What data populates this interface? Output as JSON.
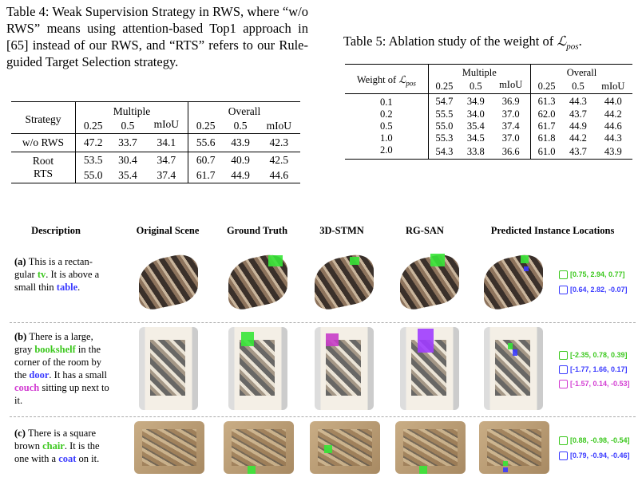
{
  "table4": {
    "caption": "Table 4: Weak Supervision Strategy in RWS, where “w/o RWS” means using attention-based Top1 approach in [65] instead of our RWS, and “RTS” refers to our Rule-guided Target Selection strategy.",
    "header": {
      "strategy": "Strategy",
      "multiple": "Multiple",
      "overall": "Overall",
      "c1": "0.25",
      "c2": "0.5",
      "c3": "mIoU"
    },
    "rows": [
      {
        "name": "w/o RWS",
        "v": [
          "47.2",
          "33.7",
          "34.1",
          "55.6",
          "43.9",
          "42.3"
        ]
      },
      {
        "name": "Root",
        "v": [
          "53.5",
          "30.4",
          "34.7",
          "60.7",
          "40.9",
          "42.5"
        ]
      },
      {
        "name": "RTS",
        "v": [
          "55.0",
          "35.4",
          "37.4",
          "61.7",
          "44.9",
          "44.6"
        ]
      }
    ]
  },
  "table5": {
    "caption_pre": "Table 5: Ablation study of the weight of ",
    "caption_sym": "ℒ",
    "caption_sub": "pos",
    "caption_post": ".",
    "header": {
      "weight": "Weight of ",
      "sym": "ℒ",
      "sub": "pos",
      "multiple": "Multiple",
      "overall": "Overall",
      "c1": "0.25",
      "c2": "0.5",
      "c3": "mIoU"
    },
    "rows": [
      {
        "w": "0.1",
        "v": [
          "54.7",
          "34.9",
          "36.9",
          "61.3",
          "44.3",
          "44.0"
        ]
      },
      {
        "w": "0.2",
        "v": [
          "55.5",
          "34.0",
          "37.0",
          "62.0",
          "43.7",
          "44.2"
        ]
      },
      {
        "w": "0.5",
        "v": [
          "55.0",
          "35.4",
          "37.4",
          "61.7",
          "44.9",
          "44.6"
        ]
      },
      {
        "w": "1.0",
        "v": [
          "55.3",
          "34.5",
          "37.0",
          "61.8",
          "44.2",
          "44.3"
        ]
      },
      {
        "w": "2.0",
        "v": [
          "54.3",
          "33.8",
          "36.6",
          "61.0",
          "43.7",
          "43.9"
        ]
      }
    ]
  },
  "figure": {
    "columns": [
      "Description",
      "Original Scene",
      "Ground Truth",
      "3D-STMN",
      "RG-SAN",
      "Predicted Instance Locations"
    ],
    "rows": [
      {
        "desc": [
          {
            "t": "(a) ",
            "c": "#000",
            "b": true
          },
          {
            "t": "This is a rectan-gular ",
            "c": "#000"
          },
          {
            "t": "tv",
            "c": "#3cc81e",
            "b": true
          },
          {
            "t": ". It is above a small thin ",
            "c": "#000"
          },
          {
            "t": "table",
            "c": "#3b3bff",
            "b": true
          },
          {
            "t": ".",
            "c": "#000"
          }
        ],
        "legend": [
          {
            "icon": "tv-icon",
            "color": "#3cc81e",
            "text": "[0.75, 2.94, 0.77]"
          },
          {
            "icon": "table-icon",
            "color": "#3b3bff",
            "text": "[0.64, 2.82, -0.07]"
          }
        ]
      },
      {
        "desc": [
          {
            "t": "(b) ",
            "c": "#000",
            "b": true
          },
          {
            "t": "There is a large, gray ",
            "c": "#000"
          },
          {
            "t": "bookshelf",
            "c": "#3cc81e",
            "b": true
          },
          {
            "t": " in the corner of the room by the ",
            "c": "#000"
          },
          {
            "t": "door",
            "c": "#3b3bff",
            "b": true
          },
          {
            "t": ". It has a small ",
            "c": "#000"
          },
          {
            "t": "couch",
            "c": "#d23cd2",
            "b": true
          },
          {
            "t": " sitting up next to it.",
            "c": "#000"
          }
        ],
        "legend": [
          {
            "icon": "bookshelf-icon",
            "color": "#3cc81e",
            "text": "[-2.35, 0.78, 0.39]"
          },
          {
            "icon": "door-icon",
            "color": "#3b3bff",
            "text": "[-1.77, 1.66, 0.17]"
          },
          {
            "icon": "couch-icon",
            "color": "#d23cd2",
            "text": "[-1.57, 0.14, -0.53]"
          }
        ]
      },
      {
        "desc": [
          {
            "t": "(c) ",
            "c": "#000",
            "b": true
          },
          {
            "t": "There is a square brown ",
            "c": "#000"
          },
          {
            "t": "chair",
            "c": "#3cc81e",
            "b": true
          },
          {
            "t": ". It is the one with a ",
            "c": "#000"
          },
          {
            "t": "coat",
            "c": "#3b3bff",
            "b": true
          },
          {
            "t": " on it.",
            "c": "#000"
          }
        ],
        "legend": [
          {
            "icon": "chair-icon",
            "color": "#3cc81e",
            "text": "[0.88, -0.98, -0.54]"
          },
          {
            "icon": "coat-icon",
            "color": "#3b3bff",
            "text": "[0.79, -0.94, -0.46]"
          }
        ]
      }
    ]
  }
}
